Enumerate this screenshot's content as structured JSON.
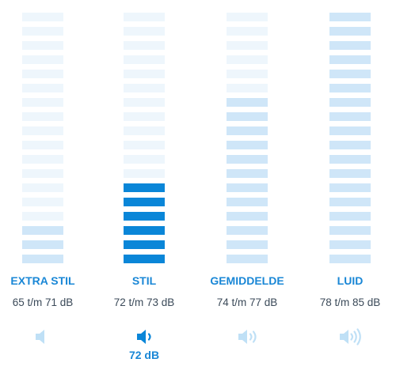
{
  "levels": [
    {
      "label": "EXTRA STIL",
      "range": "65 t/m 71 dB",
      "icon": "speaker-muted-icon"
    },
    {
      "label": "STIL",
      "range": "72 t/m 73 dB",
      "icon": "speaker-one-wave-icon",
      "reading": "72 dB"
    },
    {
      "label": "GEMIDDELDE",
      "range": "74 t/m 77 dB",
      "icon": "speaker-two-waves-icon"
    },
    {
      "label": "LUID",
      "range": "78 t/m 85 dB",
      "icon": "speaker-three-waves-icon"
    }
  ],
  "selected_level": "STIL",
  "colors": {
    "accent": "#1a87d6",
    "active_bar": "#0a86d8",
    "medium_bar": "#cfe6f8",
    "light_bar": "#eef6fc",
    "muted_icon": "#bfe0f6"
  }
}
